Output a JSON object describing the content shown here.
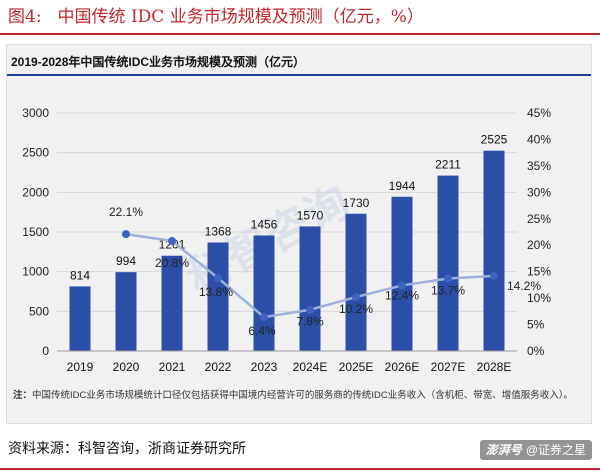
{
  "figure": {
    "number": "图4:",
    "title": "中国传统 IDC 业务市场规模及预测（亿元，%）"
  },
  "chart_title": "2019-2028年中国传统IDC业务市场规模及预测（亿元）",
  "note_label": "注：",
  "note_text": "中国传统IDC业务市场规模统计口径仅包括获得中国境内经营许可的服务商的传统IDC业务收入（含机柜、带宽、增值服务收入）。",
  "source": "资料来源：科智咨询，浙商证券研究所",
  "watermark_center": "科智咨询",
  "watermark_corner": {
    "brand": "澎湃号",
    "text": "@证券之星"
  },
  "colors": {
    "bar": "#2b4fa6",
    "line": "#9fb0db",
    "marker": "#3f63c0",
    "accent": "#c0262b",
    "grid": "#d6d6d6"
  },
  "chart_data": {
    "type": "bar",
    "categories": [
      "2019",
      "2020",
      "2021",
      "2022",
      "2023",
      "2024E",
      "2025E",
      "2026E",
      "2027E",
      "2028E"
    ],
    "series": [
      {
        "values": [
          814,
          994,
          1201,
          1368,
          1456,
          1570,
          1730,
          1944,
          2211,
          2525
        ],
        "axis": "left",
        "kind": "bar"
      },
      {
        "values": [
          null,
          22.1,
          20.8,
          13.8,
          6.4,
          7.8,
          10.2,
          12.4,
          13.7,
          14.2
        ],
        "labels": [
          "",
          "22.1%",
          "20.8%",
          "13.8%",
          "6.4%",
          "7.8%",
          "10.2%",
          "12.4%",
          "13.7%",
          "14.2%"
        ],
        "axis": "right",
        "kind": "line"
      }
    ],
    "y_left": {
      "min": 0,
      "max": 3000,
      "ticks": [
        "0",
        "500",
        "1000",
        "1500",
        "2000",
        "2500",
        "3000"
      ]
    },
    "y_right": {
      "min": 0,
      "max": 45,
      "ticks": [
        "0%",
        "5%",
        "10%",
        "15%",
        "20%",
        "25%",
        "30%",
        "35%",
        "40%",
        "45%"
      ]
    },
    "grid": true,
    "legend": "none"
  }
}
